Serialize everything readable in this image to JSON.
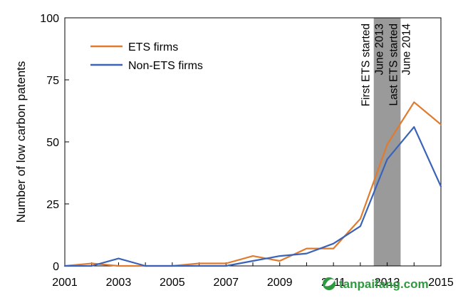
{
  "chart_data": {
    "type": "line",
    "title": "",
    "xlabel": "",
    "ylabel": "Number of low carbon patents",
    "xlim": [
      2001,
      2015
    ],
    "ylim": [
      0,
      100
    ],
    "x_ticks": [
      "2001",
      "2003",
      "2005",
      "2007",
      "2009",
      "2011",
      "2013",
      "2015"
    ],
    "y_ticks": [
      "0",
      "25",
      "50",
      "75",
      "100"
    ],
    "grid": false,
    "legend_position": "top-left",
    "series": [
      {
        "name": "ETS firms",
        "color": "#e07b2e",
        "x": [
          2001,
          2002,
          2003,
          2004,
          2005,
          2006,
          2007,
          2008,
          2009,
          2010,
          2011,
          2012,
          2013,
          2014,
          2015
        ],
        "values": [
          0,
          1,
          0,
          0,
          0,
          1,
          1,
          4,
          2,
          7,
          7,
          19,
          49,
          66,
          57
        ]
      },
      {
        "name": "Non-ETS firms",
        "color": "#3a63b8",
        "x": [
          2001,
          2002,
          2003,
          2004,
          2005,
          2006,
          2007,
          2008,
          2009,
          2010,
          2011,
          2012,
          2013,
          2014,
          2015
        ],
        "values": [
          0,
          0,
          3,
          0,
          0,
          0,
          0,
          2,
          4,
          5,
          9,
          16,
          43,
          56,
          32
        ]
      }
    ],
    "shaded_band": {
      "x_start": 2012.5,
      "x_end": 2013.5,
      "color": "#9a9a9a",
      "labels": [
        {
          "line1": "First ETS started",
          "line2": "June 2013"
        },
        {
          "line1": "Last ETS started",
          "line2": "June 2014"
        }
      ]
    }
  },
  "watermark": {
    "text": "tanpaifang.com",
    "icon": "leaf-logo-icon",
    "color": "#2e9a3f"
  }
}
